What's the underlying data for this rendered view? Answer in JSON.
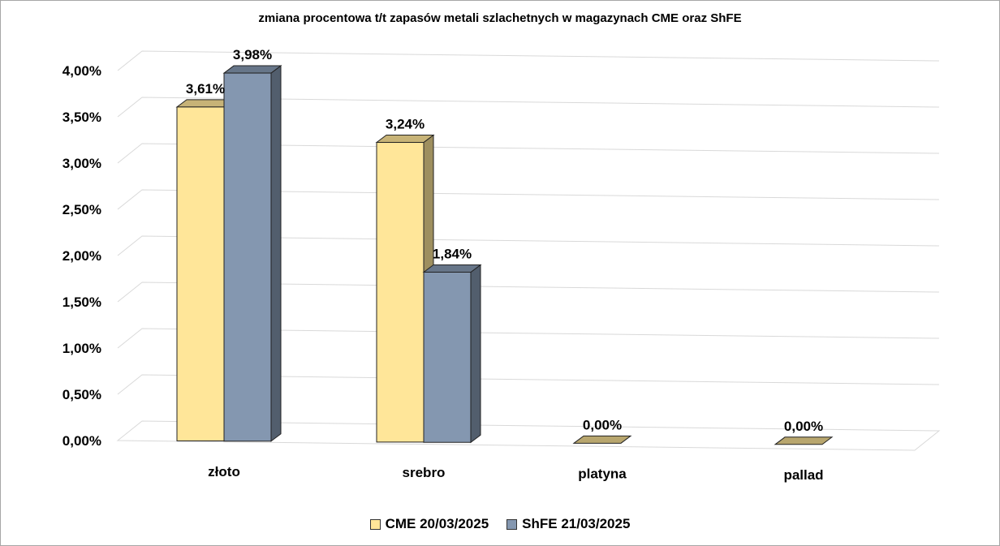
{
  "chart_data": {
    "type": "bar",
    "title": "zmiana procentowa t/t zapasów metali szlachetnych w magazynach CME oraz ShFE",
    "categories": [
      "złoto",
      "srebro",
      "platyna",
      "pallad"
    ],
    "series": [
      {
        "name": "CME 20/03/2025",
        "values": [
          3.61,
          3.24,
          0.0,
          0.0
        ],
        "labels": [
          "3,61%",
          "3,24%",
          "0,00%",
          "0,00%"
        ],
        "color": "#FFE699"
      },
      {
        "name": "ShFE 21/03/2025",
        "values": [
          3.98,
          1.84,
          0.0,
          0.0
        ],
        "labels": [
          "3,98%",
          "1,84%",
          "",
          ""
        ],
        "color": "#8497B0"
      }
    ],
    "y_ticks": [
      "0,00%",
      "0,50%",
      "1,00%",
      "1,50%",
      "2,00%",
      "2,50%",
      "3,00%",
      "3,50%",
      "4,00%"
    ],
    "ylim": [
      0,
      4.0
    ],
    "grid": true,
    "legend_position": "bottom",
    "view": "3d-perspective"
  }
}
